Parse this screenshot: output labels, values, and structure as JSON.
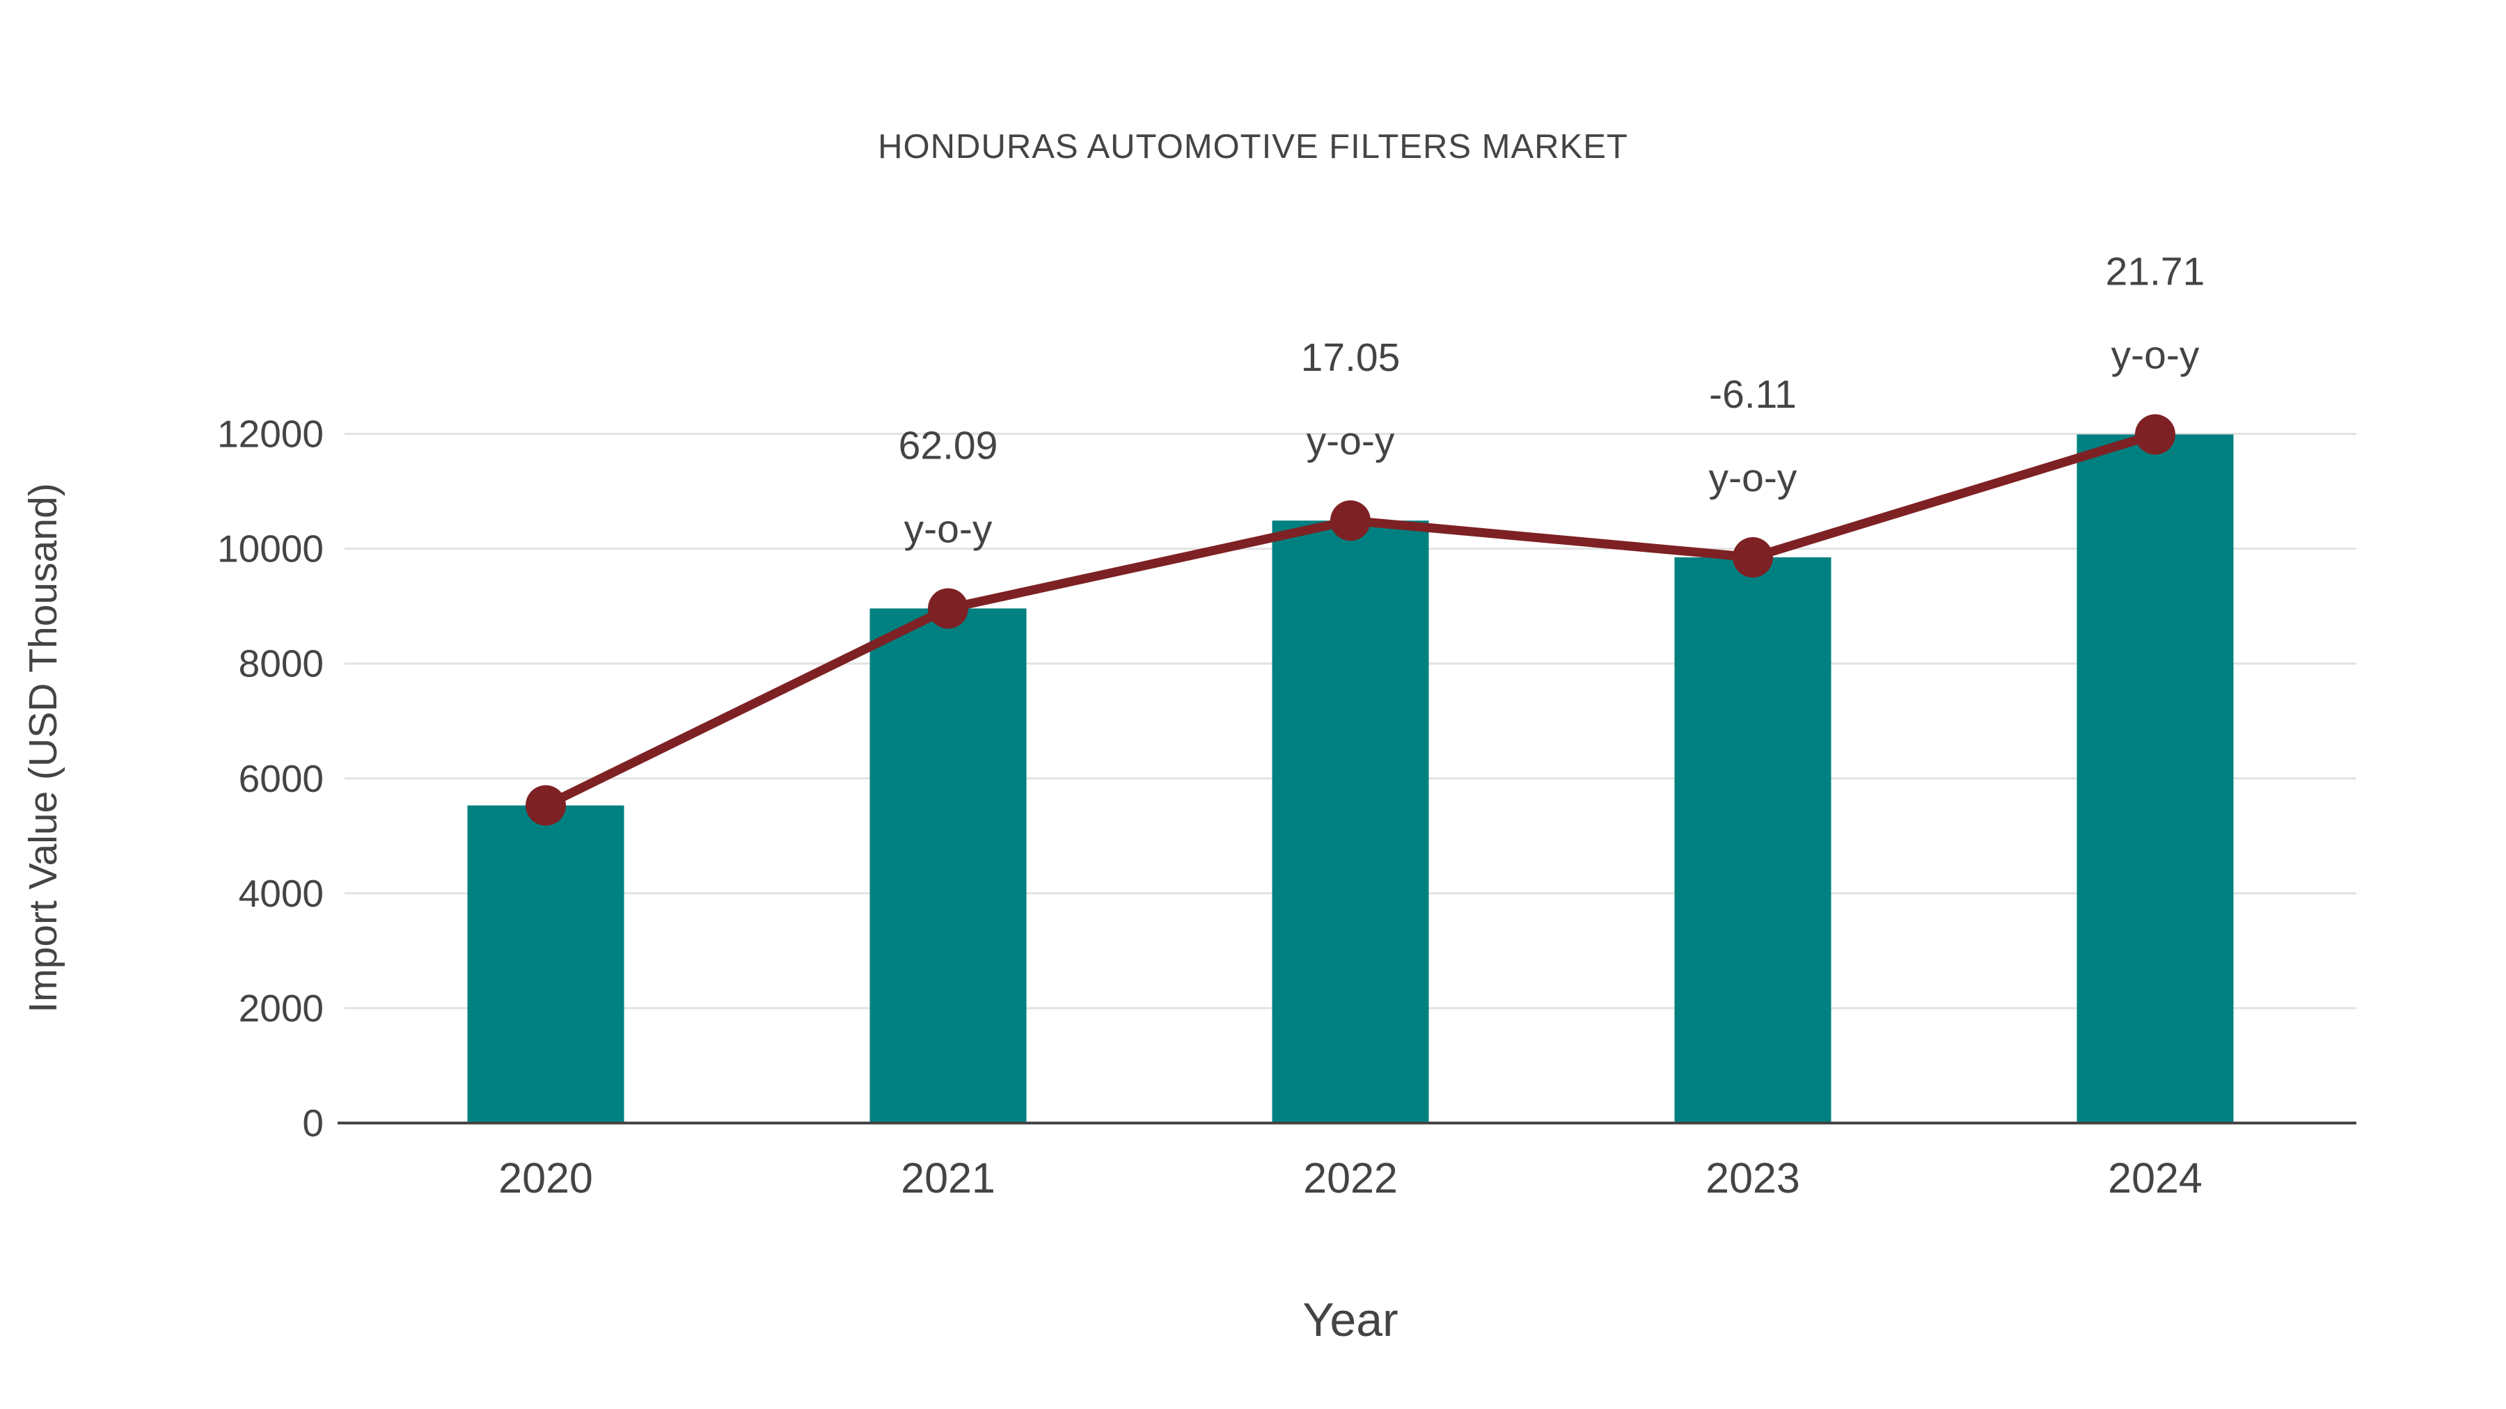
{
  "chart_data": {
    "type": "bar",
    "title": "HONDURAS AUTOMOTIVE FILTERS MARKET",
    "xlabel": "Year",
    "ylabel": "Import Value (USD Thousand)",
    "categories": [
      "2020",
      "2021",
      "2022",
      "2023",
      "2024"
    ],
    "series": [
      {
        "name": "Import Value (USD Thousand)",
        "type": "bar",
        "values": [
          5530,
          8960,
          10490,
          9850,
          11990
        ]
      },
      {
        "name": "Import Value trend",
        "type": "line",
        "values": [
          5530,
          8960,
          10490,
          9850,
          11990
        ]
      }
    ],
    "annotations": [
      {
        "category": "2021",
        "value": "62.09",
        "label": "y-o-y"
      },
      {
        "category": "2022",
        "value": "17.05",
        "label": "y-o-y"
      },
      {
        "category": "2023",
        "value": "-6.11",
        "label": "y-o-y"
      },
      {
        "category": "2024",
        "value": "21.71",
        "label": "y-o-y"
      }
    ],
    "yticks": [
      0,
      2000,
      4000,
      6000,
      8000,
      10000,
      12000
    ],
    "ylim": [
      0,
      13000
    ],
    "grid": "horizontal",
    "legend": "none",
    "colors": {
      "bar": "#008080",
      "line": "#7e2124",
      "marker": "#7e2124",
      "text": "#444444",
      "grid": "#e2e2e2",
      "axis": "#444444",
      "background": "#ffffff"
    }
  }
}
